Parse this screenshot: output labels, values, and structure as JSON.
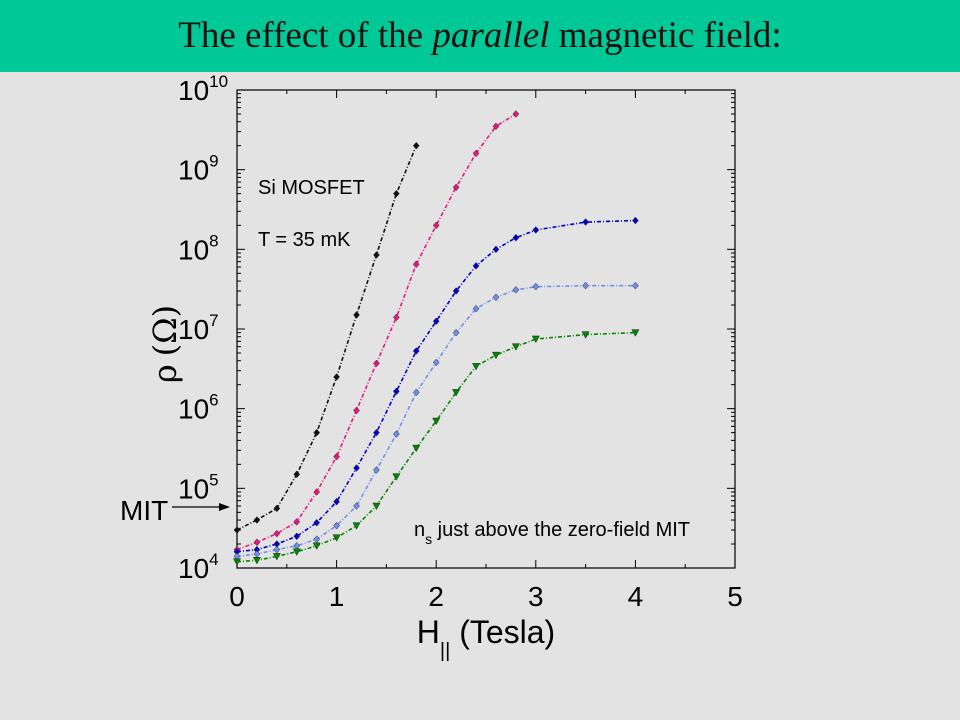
{
  "slide": {
    "title_prefix": "The effect of the ",
    "title_emphasis": "parallel",
    "title_suffix": " magnetic field:",
    "colors": {
      "title_bar": "#00c896",
      "background": "#e3e3e3"
    }
  },
  "chart_data": {
    "type": "line",
    "title": "",
    "xlabel_main": "H",
    "xlabel_subscript": "||",
    "xlabel_unit": " (Tesla)",
    "ylabel_symbol": "ρ",
    "ylabel_unit": "(Ω)",
    "xlim": [
      0,
      5
    ],
    "ylim": [
      10000,
      10000000000
    ],
    "yscale": "log",
    "x_ticks": [
      "0",
      "1",
      "2",
      "3",
      "4",
      "5"
    ],
    "y_ticks": [
      {
        "base": "10",
        "exp": "4"
      },
      {
        "base": "10",
        "exp": "5"
      },
      {
        "base": "10",
        "exp": "6"
      },
      {
        "base": "10",
        "exp": "7"
      },
      {
        "base": "10",
        "exp": "8"
      },
      {
        "base": "10",
        "exp": "9"
      },
      {
        "base": "10",
        "exp": "10"
      }
    ],
    "grid": false,
    "annotations": {
      "sample": "Si MOSFET",
      "temperature": "T = 35 mK",
      "density_main": "n",
      "density_subscript": "s",
      "density_rest": " just above the zero-field MIT",
      "mit_label": "MIT",
      "mit_y": 30000
    },
    "series": [
      {
        "color": "#111111",
        "marker": "diamond",
        "x": [
          0,
          0.2,
          0.4,
          0.6,
          0.8,
          1.0,
          1.2,
          1.4,
          1.6,
          1.8
        ],
        "y": [
          30000,
          40000,
          56000,
          150000,
          500000,
          2500000,
          15000000,
          85000000,
          500000000,
          2000000000
        ]
      },
      {
        "color": "#e8177f",
        "marker": "diamond",
        "x": [
          0,
          0.2,
          0.4,
          0.6,
          0.8,
          1.0,
          1.2,
          1.4,
          1.6,
          1.8,
          2.0,
          2.2,
          2.4,
          2.6,
          2.8
        ],
        "y": [
          17000,
          21000,
          27000,
          38000,
          90000,
          250000,
          950000,
          3700000,
          14000000,
          65000000,
          200000000,
          600000000,
          1600000000,
          3500000000,
          5000000000
        ]
      },
      {
        "color": "#0000c8",
        "marker": "diamond",
        "x": [
          0,
          0.2,
          0.4,
          0.6,
          0.8,
          1.0,
          1.2,
          1.4,
          1.6,
          1.8,
          2.0,
          2.2,
          2.4,
          2.6,
          2.8,
          3.0,
          3.5,
          4.0
        ],
        "y": [
          16000,
          17000,
          20000,
          25000,
          37000,
          68000,
          180000,
          500000,
          1650000,
          5300000,
          12500000,
          30000000,
          62000000,
          100000000,
          140000000,
          175000000,
          220000000,
          230000000
        ]
      },
      {
        "color": "#6f8ff0",
        "marker": "diamond",
        "x": [
          0,
          0.2,
          0.4,
          0.6,
          0.8,
          1.0,
          1.2,
          1.4,
          1.6,
          1.8,
          2.0,
          2.2,
          2.4,
          2.6,
          2.8,
          3.0,
          3.5,
          4.0
        ],
        "y": [
          14000,
          15000,
          17000,
          19000,
          23000,
          34000,
          60000,
          170000,
          480000,
          1600000,
          3800000,
          9000000,
          18000000,
          25000000,
          31000000,
          34000000,
          35000000,
          35000000
        ]
      },
      {
        "color": "#008800",
        "marker": "triangle-down",
        "x": [
          0,
          0.2,
          0.4,
          0.6,
          0.8,
          1.0,
          1.2,
          1.4,
          1.6,
          1.8,
          2.0,
          2.2,
          2.4,
          2.6,
          2.8,
          3.0,
          3.5,
          4.0
        ],
        "y": [
          12000,
          12500,
          14000,
          16000,
          19000,
          24000,
          34000,
          60000,
          140000,
          320000,
          700000,
          1600000,
          3400000,
          4700000,
          6000000,
          7500000,
          8500000,
          9000000
        ]
      }
    ]
  }
}
